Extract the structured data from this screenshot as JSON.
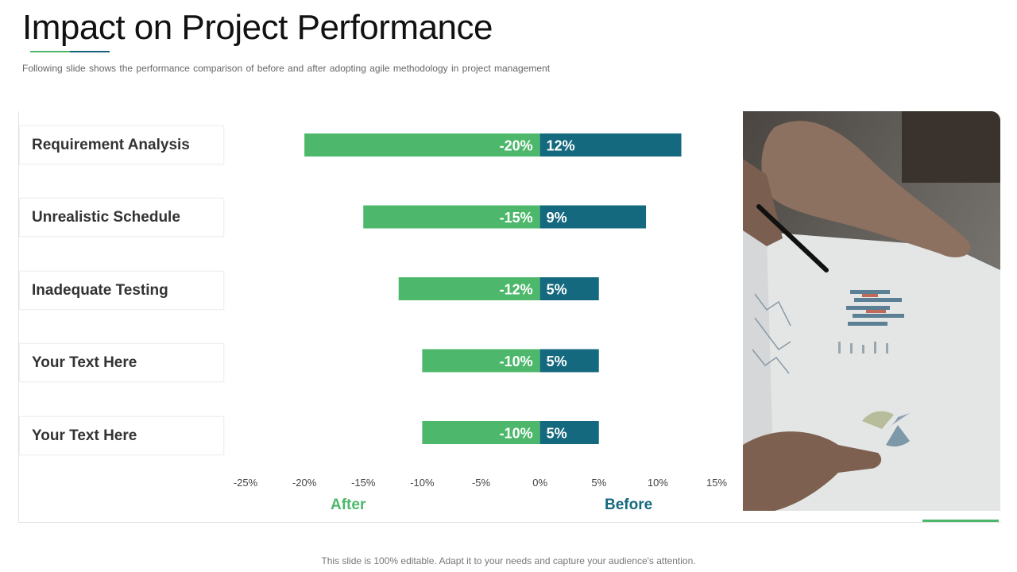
{
  "header": {
    "title": "Impact on Project Performance",
    "subtitle": "Following slide shows the performance  comparison of before and after adopting agile methodology in project management"
  },
  "chart_data": {
    "type": "bar",
    "orientation": "horizontal-diverging",
    "categories": [
      "Requirement Analysis",
      "Unrealistic Schedule",
      "Inadequate Testing",
      "Your Text Here",
      "Your Text Here"
    ],
    "series": [
      {
        "name": "After",
        "values": [
          -20,
          -15,
          -12,
          -10,
          -10
        ],
        "labels": [
          "-20%",
          "-15%",
          "-12%",
          "-10%",
          "-10%"
        ],
        "color": "#4db86b"
      },
      {
        "name": "Before",
        "values": [
          12,
          9,
          5,
          5,
          5
        ],
        "labels": [
          "12%",
          "9%",
          "5%",
          "5%",
          "5%"
        ],
        "color": "#15697f"
      }
    ],
    "xlim": [
      -25,
      15
    ],
    "x_ticks": [
      "-25%",
      "-20%",
      "-15%",
      "-10%",
      "-5%",
      "0%",
      "5%",
      "10%",
      "15%"
    ],
    "grid": false
  },
  "axis_words": {
    "after": "After",
    "before": "Before"
  },
  "colors": {
    "after": "#4db86b",
    "before": "#15697f",
    "title_underline": "#4db86b",
    "accent_line": "#4db86b"
  },
  "footer": {
    "text": "This slide is 100% editable. Adapt it to your needs and capture your audience's attention."
  }
}
